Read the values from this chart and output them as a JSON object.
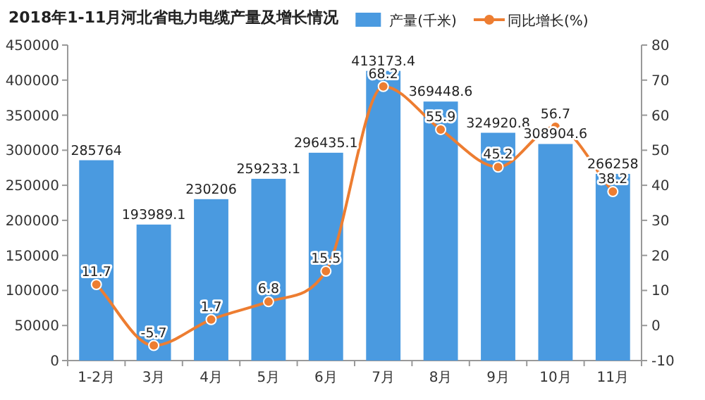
{
  "chart_data": {
    "type": "bar",
    "title": "2018年1-11月河北省电力电缆产量及增长情况",
    "categories": [
      "1-2月",
      "3月",
      "4月",
      "5月",
      "6月",
      "7月",
      "8月",
      "9月",
      "10月",
      "11月"
    ],
    "series": [
      {
        "name": "产量(千米)",
        "color": "#4a9ae0",
        "values": [
          285764,
          193989.1,
          230206,
          259233.1,
          296435.1,
          413173.4,
          369448.6,
          324920.8,
          308904.6,
          266258
        ]
      },
      {
        "name": "同比增长(%)",
        "type": "line",
        "axis": "y2",
        "color": "#ed7d31",
        "marker": "circle",
        "values": [
          11.7,
          -5.7,
          1.7,
          6.8,
          15.5,
          68.2,
          55.9,
          45.2,
          56.7,
          38.2
        ]
      }
    ],
    "ylim": [
      0,
      450000
    ],
    "yticks": [
      0,
      50000,
      100000,
      150000,
      200000,
      250000,
      300000,
      350000,
      400000,
      450000
    ],
    "y2lim": [
      -10,
      80
    ],
    "y2ticks": [
      -10,
      0,
      10,
      20,
      30,
      40,
      50,
      60,
      70,
      80
    ],
    "data_labels": true,
    "legend": "top",
    "grid": false
  }
}
